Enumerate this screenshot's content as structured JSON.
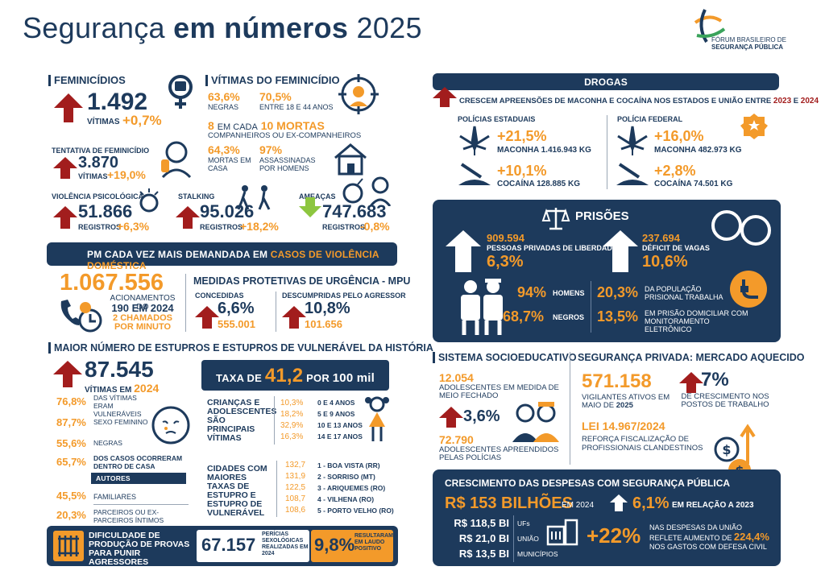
{
  "header": {
    "title_pre": "Segurança ",
    "title_bold": "em números",
    "title_year": " 2025",
    "org_line1": "FÓRUM BRASILEIRO DE",
    "org_line2": "SEGURANÇA PÚBLICA"
  },
  "feminicidios": {
    "title": "FEMINICÍDIOS",
    "value": "1.492",
    "unit": "VÍTIMAS",
    "change": "+0,7%"
  },
  "vitimas": {
    "title": "VÍTIMAS DO FEMINICÍDIO",
    "negras_pct": "63,6%",
    "negras": "NEGRAS",
    "idade_pct": "70,5%",
    "idade": "ENTRE 18 E 44 ANOS",
    "mortas_a": "8",
    "mortas_b": "EM CADA",
    "mortas_c": "10 MORTAS",
    "companheiros": "COMPANHEIROS OU EX-COMPANHEIROS",
    "casa_pct": "64,3%",
    "casa": "MORTAS EM CASA",
    "homens_pct": "97%",
    "homens": "ASSASSINADAS POR HOMENS"
  },
  "tentativa": {
    "title": "TENTATIVA DE FEMINICÍDIO",
    "value": "3.870",
    "unit": "VÍTIMAS",
    "change": "+19,0%"
  },
  "psicologica": {
    "title": "VIOLÊNCIA PSICOLÓGICA",
    "value": "51.866",
    "unit": "REGISTROS",
    "change": "+6,3%"
  },
  "stalking": {
    "title": "STALKING",
    "value": "95.026",
    "unit": "REGISTROS",
    "change": "+18,2%"
  },
  "ameacas": {
    "title": "AMEAÇAS",
    "value": "747.683",
    "unit": "REGISTROS",
    "change": "-0,8%"
  },
  "pm": {
    "banner_a": "PM CADA VEZ MAIS DEMANDADA EM ",
    "banner_b": "CASOS DE VIOLÊNCIA DOMÉSTICA",
    "value": "1.067.556",
    "acion": "ACIONAMENTOS DO",
    "year": "190 EM 2024",
    "perminuto": "2 CHAMADOS POR MINUTO"
  },
  "mpu": {
    "title": "MEDIDAS PROTETIVAS DE URGÊNCIA - MPU",
    "concedidas": "CONCEDIDAS",
    "conc_pct": "6,6%",
    "conc_val": "555.001",
    "desc": "DESCUMPRIDAS PELO AGRESSOR",
    "desc_pct": "10,8%",
    "desc_val": "101.656"
  },
  "estupros": {
    "title": "MAIOR NÚMERO DE ESTUPROS E ESTUPROS DE VULNERÁVEL DA HISTÓRIA",
    "value": "87.545",
    "unit_a": "VÍTIMAS EM",
    "unit_b": "2024",
    "taxa_a": "TAXA DE",
    "taxa_b": "41,2",
    "taxa_c": "POR",
    "taxa_d": "100 mil",
    "stats": [
      {
        "pct": "76,8%",
        "label": "DAS VÍTIMAS ERAM VULNERÁVEIS"
      },
      {
        "pct": "87,7%",
        "label": "SEXO FEMININO"
      },
      {
        "pct": "55,6%",
        "label": "NEGRAS"
      },
      {
        "pct": "65,7%",
        "label": "DOS CASOS OCORRERAM DENTRO DE CASA"
      }
    ],
    "autores": "AUTORES",
    "familiares_pct": "45,5%",
    "familiares": "FAMILIARES",
    "parceiros_pct": "20,3%",
    "parceiros": "PARCEIROS OU EX-PARCEIROS ÍNTIMOS",
    "criancas_label": "CRIANÇAS E ADOLESCENTES SÃO PRINCIPAIS VÍTIMAS",
    "idades": [
      {
        "pct": "10,3%",
        "faixa": "0 E 4 ANOS"
      },
      {
        "pct": "18,2%",
        "faixa": "5 E 9 ANOS"
      },
      {
        "pct": "32,9%",
        "faixa": "10 E 13 ANOS"
      },
      {
        "pct": "16,3%",
        "faixa": "14 E 17 ANOS"
      }
    ],
    "cidades_label": "CIDADES COM MAIORES TAXAS DE ESTUPRO E ESTUPRO DE VULNERÁVEL",
    "cidades": [
      {
        "taxa": "132,7",
        "nome": "1 - BOA VISTA (RR)"
      },
      {
        "taxa": "131,9",
        "nome": "2 - SORRISO (MT)"
      },
      {
        "taxa": "122,5",
        "nome": "3 - ARIQUEMES (RO)"
      },
      {
        "taxa": "108,7",
        "nome": "4 - VILHENA (RO)"
      },
      {
        "taxa": "108,6",
        "nome": "5 - PORTO VELHO (RO)"
      }
    ]
  },
  "provas": {
    "label": "DIFICULDADE DE PRODUÇÃO DE PROVAS PARA PUNIR AGRESSORES",
    "value": "67.157",
    "pericias": "PERÍCIAS SEXOLÓGICAS REALIZADAS EM 2024",
    "pct": "9,8%",
    "positivo": "RESULTARAM EM LAUDO POSITIVO"
  },
  "drogas": {
    "title": "DROGAS",
    "crescem_a": "CRESCEM APREENSÕES DE MACONHA E COCAÍNA NOS ESTADOS E UNIÃO ENTRE ",
    "y1": "2023",
    "e": " E ",
    "y2": "2024",
    "estaduais": "POLÍCIAS ESTADUAIS",
    "est_mac_pct": "+21,5%",
    "est_mac": "MACONHA 1.416.943 KG",
    "est_coc_pct": "+10,1%",
    "est_coc": "COCAÍNA 128.885 KG",
    "federal": "POLÍCIA FEDERAL",
    "fed_mac_pct": "+16,0%",
    "fed_mac": "MACONHA 482.973 KG",
    "fed_coc_pct": "+2,8%",
    "fed_coc": "COCAÍNA 74.501 KG"
  },
  "prisoes": {
    "title": "PRISÕES",
    "pl_val": "909.594",
    "pl_label": "PESSOAS PRIVADAS DE LIBERDADE",
    "pl_pct": "6,3%",
    "def_val": "237.694",
    "def_label": "DÉFICIT DE VAGAS",
    "def_pct": "10,6%",
    "homens_pct": "94%",
    "homens": "HOMENS",
    "negros_pct": "68,7%",
    "negros": "NEGROS",
    "trab_pct": "20,3%",
    "trab": "DA POPULAÇÃO PRISIONAL TRABALHA",
    "dom_pct": "13,5%",
    "dom": "EM PRISÃO DOMICILIAR COM MONITORAMENTO ELETRÔNICO"
  },
  "socio": {
    "title": "SISTEMA SOCIOEDUCATIVO",
    "v1": "12.054",
    "l1": "ADOLESCENTES EM MEDIDA DE MEIO FECHADO",
    "pct": "3,6%",
    "v2": "72.790",
    "l2": "ADOLESCENTES APREENDIDOS PELAS POLÍCIAS"
  },
  "privada": {
    "title": "SEGURANÇA PRIVADA: MERCADO AQUECIDO",
    "v": "571.158",
    "l_a": "VIGILANTES ATIVOS EM MAIO DE ",
    "l_b": "2025",
    "pct": "7%",
    "postos": "DE CRESCIMENTO NOS POSTOS DE TRABALHO",
    "lei": "LEI 14.967/2024",
    "reforca": "REFORÇA FISCALIZAÇÃO DE PROFISSIONAIS CLANDESTINOS"
  },
  "despesas": {
    "title": "CRESCIMENTO DAS DESPESAS COM SEGURANÇA PÚBLICA",
    "total": "R$ 153 BILHÕES",
    "em": "EM 2024",
    "pct": "6,1%",
    "rel": "EM RELAÇÃO A ",
    "rel_y": "2023",
    "itens": [
      {
        "v": "R$ 118,5 BI",
        "l": "UFs"
      },
      {
        "v": "R$ 21,0 BI",
        "l": "UNIÃO"
      },
      {
        "v": "R$ 13,5 BI",
        "l": "MUNICÍPIOS"
      }
    ],
    "uniao_pct": "+22%",
    "nas": "NAS DESPESAS DA UNIÃO REFLETE AUMENTO DE ",
    "civil_pct": "224,4%",
    "civil": "NOS GASTOS COM DEFESA CIVIL"
  }
}
